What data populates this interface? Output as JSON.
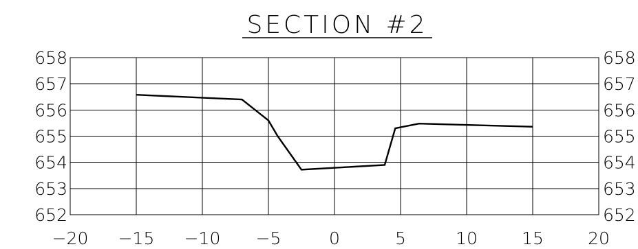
{
  "chart_data": {
    "type": "line",
    "title": "SECTION #2",
    "xlabel": "",
    "ylabel": "",
    "xlim": [
      -20,
      20
    ],
    "ylim": [
      652,
      658
    ],
    "x_ticks": [
      -20,
      -15,
      -10,
      -5,
      0,
      5,
      10,
      15,
      20
    ],
    "x_tick_labels": [
      "−20",
      "−15",
      "−10",
      "−5",
      "0",
      "5",
      "10",
      "15",
      "20"
    ],
    "y_ticks": [
      658,
      657,
      656,
      655,
      654,
      653,
      652
    ],
    "y_tick_labels": [
      "658",
      "657",
      "656",
      "655",
      "654",
      "653",
      "652"
    ],
    "right_y_tick_labels": [
      "658",
      "657",
      "656",
      "655",
      "654",
      "653",
      "652"
    ],
    "grid": true,
    "series": [
      {
        "x": [
          -15,
          -7,
          -5,
          -4.3,
          -2.5,
          3.8,
          4.6,
          6.4,
          15
        ],
        "y": [
          656.58,
          656.4,
          655.6,
          655.0,
          653.72,
          653.9,
          655.3,
          655.48,
          655.36
        ]
      }
    ]
  }
}
